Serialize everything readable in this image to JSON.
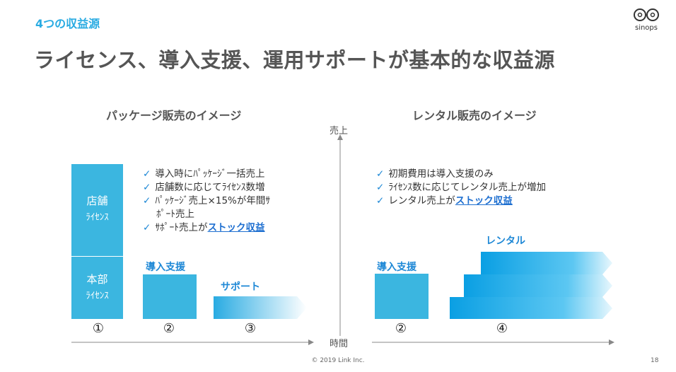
{
  "header": {
    "section_title": "4つの収益源",
    "main_title": "ライセンス、導入支援、運用サポートが基本的な収益源",
    "logo_text": "sinops"
  },
  "left": {
    "subtitle": "パッケージ販売のイメージ",
    "block_store": {
      "line1": "店舗",
      "line2": "ﾗｲｾﾝｽ"
    },
    "block_hq": {
      "line1": "本部",
      "line2": "ﾗｲｾﾝｽ"
    },
    "intro_label": "導入支援",
    "support_label": "サポート",
    "bullets": [
      {
        "text": "導入時にﾊﾟｯｹｰｼﾞ一括売上"
      },
      {
        "text": "店舗数に応じてﾗｲｾﾝｽ数増"
      },
      {
        "text": "ﾊﾟｯｹｰｼﾞ売上×15%が年間ｻ"
      },
      {
        "text": "ﾎﾟｰﾄ売上"
      },
      {
        "text": "ｻﾎﾟｰﾄ売上が",
        "strong": "ストック収益"
      }
    ],
    "numbers": [
      "①",
      "②",
      "③"
    ]
  },
  "right": {
    "subtitle": "レンタル販売のイメージ",
    "intro_label": "導入支援",
    "rental_label": "レンタル",
    "bullets": [
      {
        "text": "初期費用は導入支援のみ"
      },
      {
        "text": "ﾗｲｾﾝｽ数に応じてレンタル売上が増加"
      },
      {
        "text": "レンタル売上が",
        "strong": "ストック収益"
      }
    ],
    "numbers": [
      "②",
      "④"
    ]
  },
  "axes": {
    "y_label": "売上",
    "x_label": "時間",
    "check_mark": "✓"
  },
  "footer": {
    "copyright": "© 2019 Link Inc.",
    "page": "18"
  },
  "colors": {
    "accent": "#29abe2",
    "block": "#3bb6e0",
    "label_blue": "#1e88d6"
  }
}
